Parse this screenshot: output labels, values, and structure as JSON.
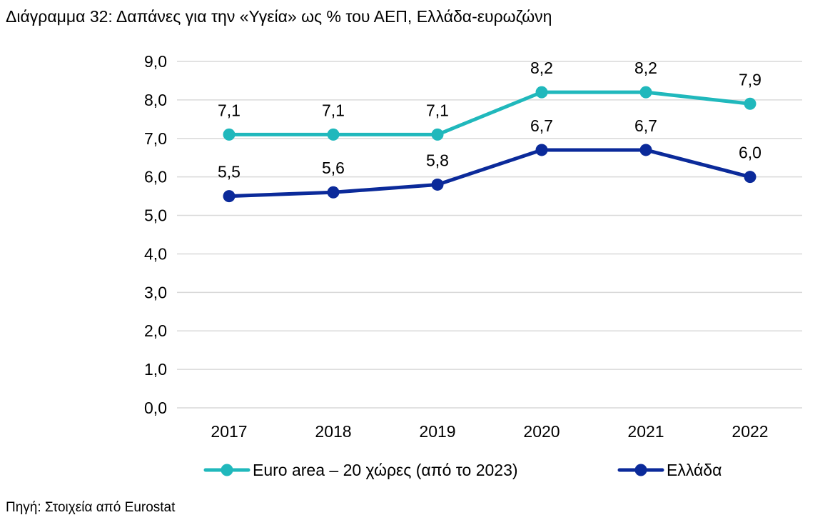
{
  "title": "Διάγραμμα 32: Δαπάνες για την «Υγεία» ως % του ΑΕΠ, Ελλάδα-ευρωζώνη",
  "source": "Πηγή: Στοιχεία από Eurostat",
  "chart_data": {
    "type": "line",
    "categories": [
      "2017",
      "2018",
      "2019",
      "2020",
      "2021",
      "2022"
    ],
    "y_ticks": [
      "0,0",
      "1,0",
      "2,0",
      "3,0",
      "4,0",
      "5,0",
      "6,0",
      "7,0",
      "8,0",
      "9,0"
    ],
    "ylim": [
      0,
      9
    ],
    "grid": true,
    "legend_position": "bottom",
    "series": [
      {
        "name": "Euro area – 20 χώρες (από το 2023)",
        "values": [
          7.1,
          7.1,
          7.1,
          8.2,
          8.2,
          7.9
        ],
        "labels": [
          "7,1",
          "7,1",
          "7,1",
          "8,2",
          "8,2",
          "7,9"
        ],
        "color": "#20b8bc"
      },
      {
        "name": "Ελλάδα",
        "values": [
          5.5,
          5.6,
          5.8,
          6.7,
          6.7,
          6.0
        ],
        "labels": [
          "5,5",
          "5,6",
          "5,8",
          "6,7",
          "6,7",
          "6,0"
        ],
        "color": "#0b2a9a"
      }
    ]
  }
}
